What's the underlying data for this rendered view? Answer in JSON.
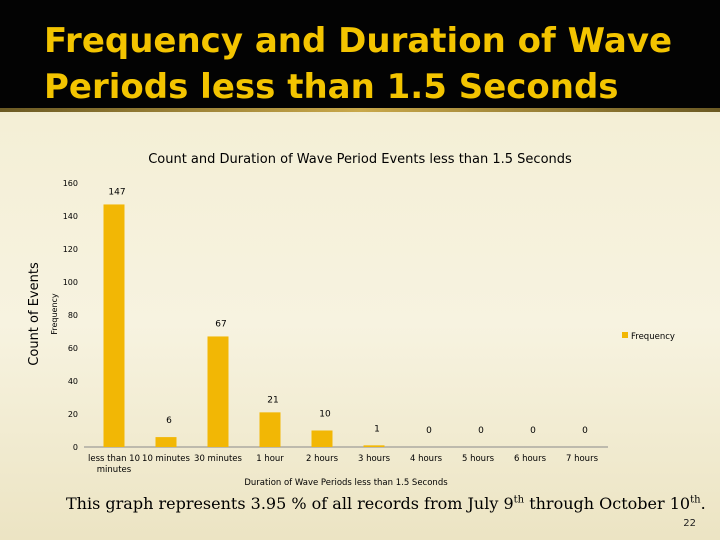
{
  "slide": {
    "title_line1": "Frequency and Duration of Wave",
    "title_line2": "Periods less than 1.5 Seconds",
    "footer_pre": "This graph represents 3.95 % of all records from July 9",
    "footer_sup1": "th",
    "footer_mid": " through October 10",
    "footer_sup2": "th",
    "footer_end": ".",
    "page_number": "22"
  },
  "colors": {
    "bar": "#f2b705",
    "title": "#f3c400",
    "band": "#030303"
  },
  "chart_data": {
    "type": "bar",
    "title": "Count and Duration of Wave Period Events less than 1.5 Seconds",
    "outer_ylabel": "Count of Events",
    "ylabel": "Frequency",
    "xlabel": "Duration of Wave Periods less than 1.5 Seconds",
    "categories": [
      "less than 10 minutes",
      "10 minutes",
      "30 minutes",
      "1 hour",
      "2 hours",
      "3 hours",
      "4 hours",
      "5 hours",
      "6 hours",
      "7 hours"
    ],
    "series": [
      {
        "name": "Frequency",
        "values": [
          147,
          6,
          67,
          21,
          10,
          1,
          0,
          0,
          0,
          0
        ]
      }
    ],
    "yticks": [
      0,
      20,
      40,
      60,
      80,
      100,
      120,
      140,
      160
    ],
    "ylim": [
      0,
      160
    ],
    "legend_position": "right",
    "grid": false
  }
}
